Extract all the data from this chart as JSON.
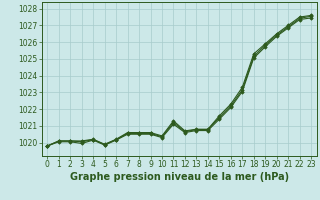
{
  "xlabel": "Graphe pression niveau de la mer (hPa)",
  "background_color": "#cce8e8",
  "grid_color": "#a8cccc",
  "line_color": "#2d5a1e",
  "x": [
    0,
    1,
    2,
    3,
    4,
    5,
    6,
    7,
    8,
    9,
    10,
    11,
    12,
    13,
    14,
    15,
    16,
    17,
    18,
    19,
    20,
    21,
    22,
    23
  ],
  "line1": [
    1019.8,
    1020.1,
    1020.1,
    1020.1,
    1020.2,
    1019.9,
    1020.2,
    1020.6,
    1020.6,
    1020.6,
    1020.4,
    1021.3,
    1020.7,
    1020.8,
    1020.8,
    1021.6,
    1022.3,
    1023.3,
    1025.3,
    1025.9,
    1026.5,
    1027.0,
    1027.5,
    1027.6
  ],
  "line2": [
    1019.8,
    1020.1,
    1020.1,
    1020.05,
    1020.18,
    1019.88,
    1020.18,
    1020.55,
    1020.55,
    1020.55,
    1020.35,
    1021.2,
    1020.65,
    1020.78,
    1020.78,
    1021.5,
    1022.2,
    1023.15,
    1025.15,
    1025.82,
    1026.42,
    1026.92,
    1027.42,
    1027.55
  ],
  "line3": [
    1019.8,
    1020.05,
    1020.05,
    1019.95,
    1020.15,
    1019.85,
    1020.15,
    1020.5,
    1020.5,
    1020.5,
    1020.3,
    1021.1,
    1020.6,
    1020.72,
    1020.72,
    1021.4,
    1022.1,
    1023.05,
    1025.05,
    1025.72,
    1026.35,
    1026.85,
    1027.35,
    1027.45
  ],
  "ylim_min": 1019.2,
  "ylim_max": 1028.4,
  "yticks": [
    1020,
    1021,
    1022,
    1023,
    1024,
    1025,
    1026,
    1027,
    1028
  ],
  "marker": "D",
  "marker_size": 1.8,
  "line_width": 0.8,
  "xlabel_fontsize": 7,
  "tick_fontsize": 5.5
}
